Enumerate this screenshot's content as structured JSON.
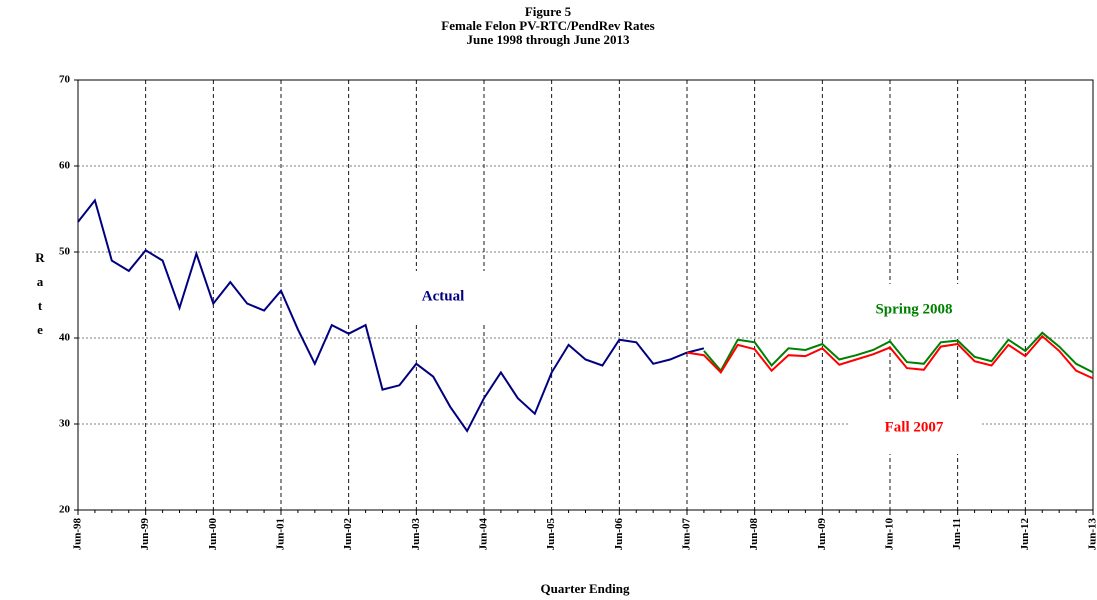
{
  "chart_data": {
    "type": "line",
    "title": "Figure 5",
    "subtitle": "Female Felon PV-RTC/PendRev Rates",
    "subtitle2": "June 1998 through June 2013",
    "x_label": "Quarter Ending",
    "y_label": "Rate",
    "categories": [
      "Jun-98",
      null,
      null,
      null,
      "Jun-99",
      null,
      null,
      null,
      "Jun-00",
      null,
      null,
      null,
      "Jun-01",
      null,
      null,
      null,
      "Jun-02",
      null,
      null,
      null,
      "Jun-03",
      null,
      null,
      null,
      "Jun-04",
      null,
      null,
      null,
      "Jun-05",
      null,
      null,
      null,
      "Jun-06",
      null,
      null,
      null,
      "Jun-07",
      null,
      null,
      null,
      "Jun-08",
      null,
      null,
      null,
      "Jun-09",
      null,
      null,
      null,
      "Jun-10",
      null,
      null,
      null,
      "Jun-11",
      null,
      null,
      null,
      "Jun-12",
      null,
      null,
      null,
      "Jun-13"
    ],
    "series": [
      {
        "name": "Actual",
        "color": "#000080",
        "values": [
          53.5,
          56,
          49,
          47.8,
          50.2,
          49,
          43.5,
          49.8,
          44,
          46.5,
          44,
          43.2,
          45.5,
          41,
          37,
          41.5,
          40.5,
          41.5,
          34,
          34.5,
          37,
          35.5,
          32,
          29.2,
          33,
          36,
          33,
          31.2,
          36,
          39.2,
          37.5,
          36.8,
          39.8,
          39.5,
          37,
          37.5,
          38.3,
          38.8,
          null,
          null,
          null,
          null,
          null,
          null,
          null,
          null,
          null,
          null,
          null,
          null,
          null,
          null,
          null,
          null,
          null,
          null,
          null,
          null,
          null,
          null,
          null
        ]
      },
      {
        "name": "Spring 2008",
        "color": "#008000",
        "values": [
          null,
          null,
          null,
          null,
          null,
          null,
          null,
          null,
          null,
          null,
          null,
          null,
          null,
          null,
          null,
          null,
          null,
          null,
          null,
          null,
          null,
          null,
          null,
          null,
          null,
          null,
          null,
          null,
          null,
          null,
          null,
          null,
          null,
          null,
          null,
          null,
          null,
          38.5,
          36.2,
          39.8,
          39.5,
          36.8,
          38.8,
          38.6,
          39.3,
          37.5,
          38,
          38.6,
          39.6,
          37.2,
          37,
          39.5,
          39.7,
          37.8,
          37.3,
          39.8,
          38.5,
          40.6,
          39,
          37,
          36
        ]
      },
      {
        "name": "Fall 2007",
        "color": "#ff0000",
        "values": [
          null,
          null,
          null,
          null,
          null,
          null,
          null,
          null,
          null,
          null,
          null,
          null,
          null,
          null,
          null,
          null,
          null,
          null,
          null,
          null,
          null,
          null,
          null,
          null,
          null,
          null,
          null,
          null,
          null,
          null,
          null,
          null,
          null,
          null,
          null,
          null,
          38.3,
          38,
          36,
          39.2,
          38.7,
          36.2,
          38,
          37.9,
          38.8,
          36.9,
          37.5,
          38.1,
          38.9,
          36.5,
          36.3,
          39,
          39.3,
          37.3,
          36.8,
          39.2,
          37.9,
          40.2,
          38.5,
          36.2,
          35.3
        ]
      }
    ],
    "ylim": [
      20,
      70
    ],
    "yticks": [
      20,
      30,
      40,
      50,
      60,
      70
    ],
    "grid": true
  }
}
